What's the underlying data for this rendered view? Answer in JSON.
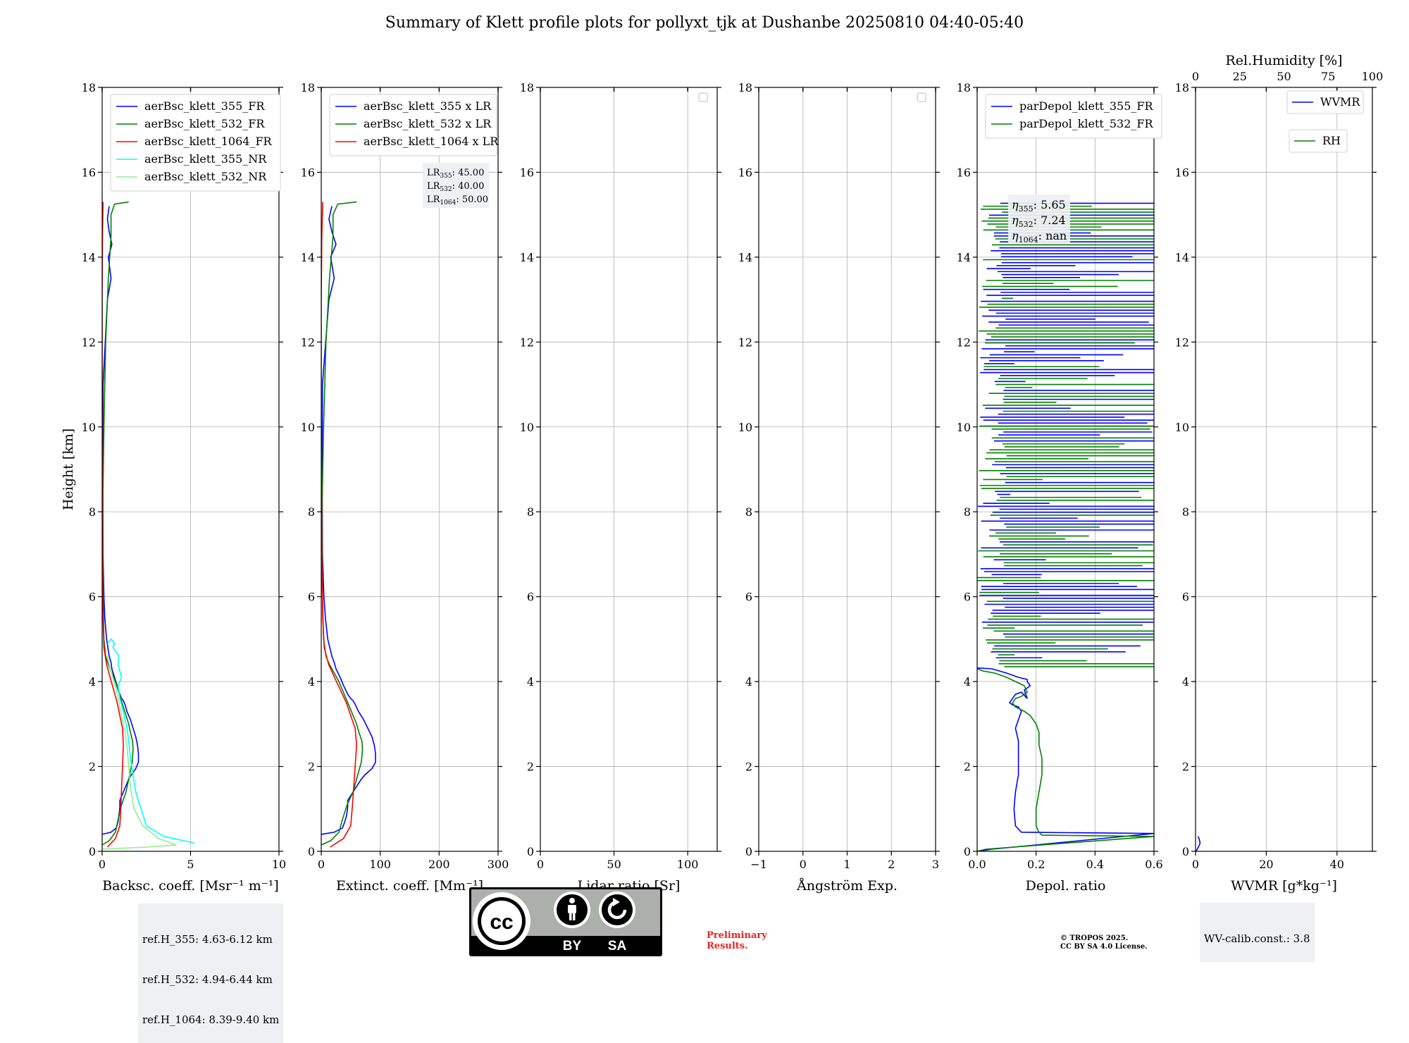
{
  "figure": {
    "title": "Summary of Klett profile plots for pollyxt_tjk at Dushanbe 20250810 04:40-05:40",
    "ref_heights": [
      "ref.H_355: 4.63-6.12 km",
      "ref.H_532: 4.94-6.44 km",
      "ref.H_1064: 8.39-9.40 km"
    ],
    "wv_calib": "WV-calib.const.: 3.8",
    "preliminary": [
      "Preliminary",
      "Results."
    ],
    "copyright": [
      "© TROPOS 2025.",
      "CC BY SA 4.0 License."
    ],
    "license_badge": {
      "icon": "cc-by-sa-badge",
      "labels": [
        "BY",
        "SA"
      ],
      "logo_text": "cc"
    },
    "colors": {
      "blue": "#0000ff",
      "green": "#008000",
      "red": "#ff0000",
      "cyan": "#00ffff",
      "lightgreen": "#90ee90"
    }
  },
  "chart_data": [
    {
      "type": "line",
      "xlabel": "Backsc. coeff. [Msr⁻¹ m⁻¹]",
      "ylabel": "Height [km]",
      "xlim": [
        0,
        10
      ],
      "ylim": [
        0,
        18
      ],
      "xticks": [
        0,
        5,
        10
      ],
      "yticks": [
        0,
        2,
        4,
        6,
        8,
        10,
        12,
        14,
        16,
        18
      ],
      "grid": true,
      "legend": "upper-left",
      "series": [
        {
          "name": "aerBsc_klett_355_FR",
          "color": "#0000ff",
          "x": [
            0,
            0.5,
            0.8,
            0.9,
            0.95,
            0.98,
            1.0,
            1.0,
            1.2,
            1.35,
            1.5,
            1.65,
            1.9,
            2.05,
            2.05,
            2.0,
            1.9,
            1.75,
            1.6,
            1.4,
            1.3,
            1.2,
            1.1,
            1.0,
            0.85,
            0.7,
            0.55,
            0.5,
            0.4,
            0.25,
            0.15,
            0.1,
            0.05,
            0.03,
            0.05,
            0.3,
            0.5,
            0.35,
            0.55,
            0.4,
            0.3,
            0.4
          ],
          "y": [
            0.4,
            0.45,
            0.55,
            0.7,
            0.85,
            0.95,
            1.05,
            1.2,
            1.4,
            1.55,
            1.7,
            1.8,
            1.95,
            2.1,
            2.3,
            2.5,
            2.7,
            2.9,
            3.1,
            3.3,
            3.45,
            3.55,
            3.6,
            3.7,
            3.9,
            4.1,
            4.3,
            4.45,
            4.6,
            5.0,
            5.5,
            6.0,
            7.0,
            9.0,
            11.0,
            13.0,
            13.5,
            14.0,
            14.3,
            14.6,
            14.9,
            15.2
          ]
        },
        {
          "name": "aerBsc_klett_532_FR",
          "color": "#008000",
          "x": [
            0,
            0.4,
            0.75,
            0.9,
            1.1,
            1.35,
            1.5,
            1.6,
            1.7,
            1.75,
            1.72,
            1.6,
            1.5,
            1.35,
            1.2,
            1.05,
            0.9,
            0.75,
            0.55,
            0.35,
            0.2,
            0.1,
            0.05,
            0.03,
            0.1,
            0.2,
            0.35,
            0.5,
            0.5,
            0.7,
            1.5
          ],
          "y": [
            0.15,
            0.25,
            0.45,
            0.75,
            1.1,
            1.4,
            1.7,
            1.9,
            2.1,
            2.4,
            2.6,
            2.8,
            3.0,
            3.2,
            3.4,
            3.6,
            3.8,
            4.0,
            4.2,
            4.4,
            4.6,
            5.0,
            6.0,
            8.0,
            10.0,
            12.0,
            13.5,
            14.5,
            15.0,
            15.25,
            15.3
          ]
        },
        {
          "name": "aerBsc_klett_1064_FR",
          "color": "#ff0000",
          "x": [
            0.3,
            0.75,
            1.0,
            1.05,
            1.1,
            1.15,
            1.2,
            1.15,
            1.0,
            0.85,
            0.65,
            0.45,
            0.25,
            0.1,
            0.05,
            0.02,
            0.0,
            0.0,
            0.02,
            0.05
          ],
          "y": [
            0.1,
            0.3,
            0.6,
            1.0,
            1.5,
            2.0,
            2.5,
            2.9,
            3.2,
            3.5,
            3.8,
            4.1,
            4.4,
            4.8,
            5.5,
            7.0,
            10.0,
            13.0,
            14.5,
            15.3
          ]
        },
        {
          "name": "aerBsc_klett_355_NR",
          "color": "#00ffff",
          "x": [
            5.2,
            3.5,
            2.5,
            2.2,
            1.9,
            1.75,
            1.6,
            1.5,
            1.4,
            1.2,
            1.0,
            0.9,
            1.1,
            1.0,
            0.9,
            0.95,
            0.8,
            0.6,
            0.7,
            0.5,
            0.4,
            0.3
          ],
          "y": [
            0.2,
            0.35,
            0.6,
            1.0,
            1.4,
            1.8,
            2.2,
            2.6,
            2.9,
            3.3,
            3.6,
            3.9,
            4.1,
            4.25,
            4.4,
            4.6,
            4.7,
            4.8,
            4.9,
            5.0,
            4.95,
            4.9
          ]
        },
        {
          "name": "aerBsc_klett_532_NR",
          "color": "#90ee90",
          "x": [
            0.0,
            2.5,
            4.2,
            3.2,
            2.3,
            1.8,
            1.6,
            1.5,
            1.4,
            1.2,
            1.0,
            0.8,
            0.6,
            0.4,
            0.3
          ],
          "y": [
            0.05,
            0.1,
            0.15,
            0.3,
            0.6,
            1.0,
            1.5,
            2.0,
            2.5,
            3.0,
            3.4,
            3.8,
            4.1,
            4.4,
            4.6
          ]
        }
      ],
      "annotations": [
        "ref.H_355: 4.63-6.12 km",
        "ref.H_532: 4.94-6.44 km",
        "ref.H_1064: 8.39-9.40 km"
      ]
    },
    {
      "type": "line",
      "xlabel": "Extinct. coeff. [Mm⁻¹]",
      "xlim": [
        0,
        300
      ],
      "ylim": [
        0,
        18
      ],
      "xticks": [
        0,
        100,
        200,
        300
      ],
      "yticks": [
        0,
        2,
        4,
        6,
        8,
        10,
        12,
        14,
        16,
        18
      ],
      "grid": true,
      "legend": "upper-left",
      "series": [
        {
          "name": "aerBsc_klett_355 x LR",
          "color": "#0000ff",
          "x": [
            0,
            22,
            36,
            40,
            43,
            44,
            45,
            45,
            54,
            61,
            68,
            74,
            86,
            92,
            92,
            90,
            86,
            79,
            72,
            63,
            58,
            54,
            50,
            45,
            38,
            32,
            25,
            22,
            18,
            11,
            7,
            4.5,
            2,
            1.4,
            2,
            13,
            22,
            16,
            25,
            18,
            13,
            18
          ],
          "y": [
            0.4,
            0.45,
            0.55,
            0.7,
            0.85,
            0.95,
            1.05,
            1.2,
            1.4,
            1.55,
            1.7,
            1.8,
            1.95,
            2.1,
            2.3,
            2.5,
            2.7,
            2.9,
            3.1,
            3.3,
            3.45,
            3.55,
            3.6,
            3.7,
            3.9,
            4.1,
            4.3,
            4.45,
            4.6,
            5.0,
            5.5,
            6.0,
            7.0,
            9.0,
            11.0,
            13.0,
            13.5,
            14.0,
            14.3,
            14.6,
            14.9,
            15.2
          ]
        },
        {
          "name": "aerBsc_klett_532 x LR",
          "color": "#008000",
          "x": [
            0,
            16,
            30,
            36,
            44,
            54,
            60,
            64,
            68,
            70,
            69,
            64,
            60,
            54,
            48,
            42,
            36,
            30,
            22,
            14,
            8,
            4,
            2,
            1.2,
            4,
            8,
            14,
            20,
            20,
            28,
            60
          ],
          "y": [
            0.15,
            0.25,
            0.45,
            0.75,
            1.1,
            1.4,
            1.7,
            1.9,
            2.1,
            2.4,
            2.6,
            2.8,
            3.0,
            3.2,
            3.4,
            3.6,
            3.8,
            4.0,
            4.2,
            4.4,
            4.6,
            5.0,
            6.0,
            8.0,
            10.0,
            12.0,
            13.5,
            14.5,
            15.0,
            15.25,
            15.3
          ]
        },
        {
          "name": "aerBsc_klett_1064 x LR",
          "color": "#ff0000",
          "x": [
            15,
            37.5,
            50,
            52.5,
            55,
            57.5,
            60,
            57.5,
            50,
            42.5,
            32.5,
            22.5,
            12.5,
            5,
            2.5,
            1,
            0,
            0,
            1,
            2.5
          ],
          "y": [
            0.1,
            0.3,
            0.6,
            1.0,
            1.5,
            2.0,
            2.5,
            2.9,
            3.2,
            3.5,
            3.8,
            4.1,
            4.4,
            4.8,
            5.5,
            7.0,
            10.0,
            13.0,
            14.5,
            15.3
          ]
        }
      ],
      "lr_labels": [
        {
          "base": "LR",
          "sub": "355",
          "text": ": 45.00"
        },
        {
          "base": "LR",
          "sub": "532",
          "text": ": 40.00"
        },
        {
          "base": "LR",
          "sub": "1064",
          "text": ": 50.00"
        }
      ]
    },
    {
      "type": "line",
      "xlabel": "Lidar ratio [Sr]",
      "xlim": [
        0,
        120
      ],
      "ylim": [
        0,
        18
      ],
      "xticks": [
        0,
        50,
        100
      ],
      "yticks": [
        0,
        2,
        4,
        6,
        8,
        10,
        12,
        14,
        16,
        18
      ],
      "grid": true,
      "legend": "upper-right",
      "series": []
    },
    {
      "type": "line",
      "xlabel": "Ångström Exp.",
      "xlim": [
        -1,
        3
      ],
      "ylim": [
        0,
        18
      ],
      "xticks": [
        -1,
        0,
        1,
        2,
        3
      ],
      "yticks": [
        0,
        2,
        4,
        6,
        8,
        10,
        12,
        14,
        16,
        18
      ],
      "grid": true,
      "legend": "upper-right",
      "series": []
    },
    {
      "type": "line",
      "xlabel": "Depol. ratio",
      "xlim": [
        0,
        0.6
      ],
      "ylim": [
        0,
        18
      ],
      "xticks": [
        0.0,
        0.2,
        0.4,
        0.6
      ],
      "yticks": [
        0,
        2,
        4,
        6,
        8,
        10,
        12,
        14,
        16,
        18
      ],
      "grid": true,
      "legend": "upper-left",
      "series": [
        {
          "name": "parDepol_klett_355_FR",
          "color": "#0000ff",
          "x": [
            0.0,
            0.05,
            0.6,
            0.15,
            0.13,
            0.125,
            0.13,
            0.14,
            0.14,
            0.14,
            0.13,
            0.14,
            0.15,
            0.14,
            0.12,
            0.11,
            0.12,
            0.13,
            0.15,
            0.17,
            0.16,
            0.18,
            0.17,
            0.17,
            0.14,
            0.1,
            0.05,
            0.0
          ],
          "y": [
            0.0,
            0.05,
            0.42,
            0.45,
            0.6,
            1.0,
            1.4,
            1.8,
            2.2,
            2.6,
            2.9,
            3.1,
            3.3,
            3.4,
            3.45,
            3.5,
            3.6,
            3.7,
            3.75,
            3.6,
            3.8,
            3.9,
            4.0,
            4.05,
            4.1,
            4.2,
            4.3,
            4.32
          ]
        },
        {
          "name": "parDepol_klett_532_FR",
          "color": "#008000",
          "x": [
            0.0,
            0.03,
            0.6,
            0.22,
            0.21,
            0.2,
            0.2,
            0.21,
            0.22,
            0.22,
            0.21,
            0.21,
            0.2,
            0.19,
            0.18,
            0.16,
            0.13,
            0.12,
            0.13,
            0.15,
            0.17,
            0.16,
            0.13,
            0.1,
            0.06,
            0.02,
            0.0
          ],
          "y": [
            0.0,
            0.05,
            0.35,
            0.38,
            0.45,
            0.6,
            1.0,
            1.4,
            1.8,
            2.2,
            2.5,
            2.8,
            3.0,
            3.1,
            3.2,
            3.3,
            3.4,
            3.5,
            3.6,
            3.65,
            3.75,
            3.9,
            4.0,
            4.1,
            4.2,
            4.25,
            4.3
          ]
        }
      ],
      "upper_layer_note": "dense horizontal noise lines between 4.3 and 15.3 km",
      "eta_labels": [
        {
          "sub": "355",
          "text": ": 5.65"
        },
        {
          "sub": "532",
          "text": ": 7.24"
        },
        {
          "sub": "1064",
          "text": ": nan"
        }
      ]
    },
    {
      "type": "line",
      "xlabel": "WVMR [g*kg⁻¹]",
      "xlabel_top": "Rel.Humidity [%]",
      "xlim": [
        0,
        50
      ],
      "xlim_top": [
        0,
        100
      ],
      "ylim": [
        0,
        18
      ],
      "xticks": [
        0,
        20,
        40
      ],
      "xticks_top": [
        0,
        25,
        50,
        75,
        100
      ],
      "yticks": [
        0,
        2,
        4,
        6,
        8,
        10,
        12,
        14,
        16,
        18
      ],
      "grid": true,
      "legend": "upper-right",
      "series": [
        {
          "name": "WVMR",
          "color": "#0000ff",
          "x": [
            0.1,
            0.5,
            0.8,
            1.1,
            1.3,
            1.0,
            0.7
          ],
          "y": [
            0.0,
            0.05,
            0.1,
            0.15,
            0.2,
            0.3,
            0.35
          ]
        },
        {
          "name": "RH",
          "color": "#008000",
          "x": [],
          "y": []
        }
      ]
    }
  ]
}
